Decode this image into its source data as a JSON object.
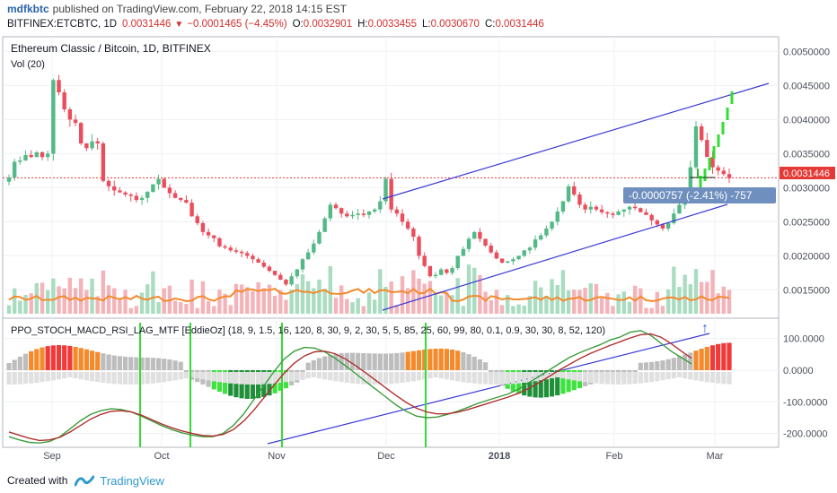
{
  "header": {
    "author": "mdfkbtc",
    "published": "published on TradingView.com, February 22, 2018 14:15 EST",
    "symbol": "BITFINEX:ETCBTC, 1D",
    "last": "0.0031446",
    "change": "−0.0001465 (−4.45%)",
    "o_label": "O:",
    "o_val": "0.0032901",
    "h_label": "H:",
    "h_val": "0.0033455",
    "l_label": "L:",
    "l_val": "0.0030670",
    "c_label": "C:",
    "c_val": "0.0031446"
  },
  "chart_data": [
    {
      "type": "candlestick",
      "title": "Ethereum Classic / Bitcoin, 1D, BITFINEX",
      "volume_label": "Vol (20)",
      "ylim": [
        0.00115,
        0.00515
      ],
      "y_ticks": [
        "0.0050000",
        "0.0045000",
        "0.0040000",
        "0.0035000",
        "0.0030000",
        "0.0025000",
        "0.0020000",
        "0.0015000"
      ],
      "x_ticks": [
        "Sep",
        "Oct",
        "Nov",
        "Dec",
        "2018",
        "Feb",
        "Mar"
      ],
      "last_price_label": "0.0031446",
      "measure_label": "-0.0000757 (-2.41%) -757",
      "colors": {
        "up": "#53b987",
        "down": "#eb4d5c",
        "trend": "#3b3bd6",
        "vol_ma": "#f48a2c",
        "last_price": "#e53935",
        "projection": "#33dd33"
      },
      "close_series": [
        0.00315,
        0.00338,
        0.0034,
        0.00348,
        0.00345,
        0.00352,
        0.00345,
        0.0035,
        0.00458,
        0.0044,
        0.00415,
        0.004,
        0.00395,
        0.00365,
        0.00358,
        0.00368,
        0.00365,
        0.0031,
        0.00302,
        0.00296,
        0.00293,
        0.0029,
        0.00288,
        0.00282,
        0.00285,
        0.00294,
        0.00305,
        0.00313,
        0.003,
        0.00292,
        0.00285,
        0.00282,
        0.00278,
        0.00258,
        0.00248,
        0.00235,
        0.0023,
        0.00226,
        0.00214,
        0.00212,
        0.00208,
        0.00206,
        0.00204,
        0.002,
        0.00195,
        0.0019,
        0.00184,
        0.00178,
        0.00172,
        0.00165,
        0.00158,
        0.0017,
        0.0018,
        0.00195,
        0.00205,
        0.00218,
        0.00235,
        0.00255,
        0.00275,
        0.0027,
        0.00262,
        0.00258,
        0.0026,
        0.00262,
        0.0026,
        0.00265,
        0.00268,
        0.0028,
        0.00313,
        0.00268,
        0.00262,
        0.0025,
        0.0024,
        0.00228,
        0.002,
        0.00185,
        0.0017,
        0.00172,
        0.0018,
        0.00175,
        0.00182,
        0.002,
        0.0021,
        0.00225,
        0.00235,
        0.00225,
        0.00215,
        0.00205,
        0.00196,
        0.0019,
        0.00192,
        0.00195,
        0.002,
        0.00208,
        0.00212,
        0.00224,
        0.0023,
        0.0024,
        0.0025,
        0.00265,
        0.0028,
        0.00302,
        0.0029,
        0.00275,
        0.00268,
        0.00272,
        0.00268,
        0.00264,
        0.00262,
        0.0026,
        0.00265,
        0.00268,
        0.00272,
        0.0027,
        0.00264,
        0.0026,
        0.00252,
        0.00246,
        0.0024,
        0.00248,
        0.00262,
        0.00275,
        0.0029,
        0.0033,
        0.0039,
        0.0037,
        0.00345,
        0.0033,
        0.00325,
        0.0032,
        0.00314
      ]
    },
    {
      "type": "oscillator",
      "title": "PPO_STOCH_MACD_RSI_LAG_MTF [EddieOz] (18, 9, 1.5, 16, 120, 8, 30, 9, 2, 30, 5, 5, 85, 25, 60, 99, 80, 0.1, 0.9, 30, 30, 8, 52, 120)",
      "ylim": [
        -235,
        150
      ],
      "y_ticks": [
        "100.0000",
        "0.0000",
        "-100.0000",
        "-200.0000"
      ],
      "series": [
        {
          "values": [
            -210,
            -220,
            -228,
            -230,
            -225,
            -210,
            -185,
            -160,
            -140,
            -128,
            -122,
            -124,
            -132,
            -145,
            -160,
            -175,
            -188,
            -198,
            -205,
            -210,
            -210,
            -200,
            -175,
            -140,
            -95,
            -50,
            -5,
            35,
            60,
            72,
            70,
            58,
            38,
            15,
            -10,
            -35,
            -60,
            -85,
            -110,
            -130,
            -145,
            -150,
            -148,
            -140,
            -130,
            -118,
            -105,
            -95,
            -85,
            -75,
            -60,
            -40,
            -20,
            0,
            20,
            40,
            55,
            68,
            80,
            95,
            105,
            120,
            125,
            110,
            85,
            60,
            40,
            20
          ]
        },
        {
          "values": [
            -195,
            -205,
            -215,
            -222,
            -220,
            -212,
            -195,
            -175,
            -155,
            -140,
            -130,
            -128,
            -132,
            -142,
            -156,
            -170,
            -182,
            -192,
            -200,
            -206,
            -208,
            -203,
            -188,
            -162,
            -128,
            -88,
            -48,
            -10,
            22,
            45,
            58,
            60,
            52,
            36,
            15,
            -8,
            -32,
            -56,
            -80,
            -102,
            -120,
            -132,
            -138,
            -138,
            -133,
            -125,
            -115,
            -105,
            -95,
            -85,
            -73,
            -58,
            -40,
            -20,
            0,
            18,
            36,
            52,
            65,
            78,
            90,
            102,
            112,
            115,
            104,
            84,
            60,
            38
          ]
        }
      ],
      "markers": [
        "↑"
      ]
    }
  ]
}
